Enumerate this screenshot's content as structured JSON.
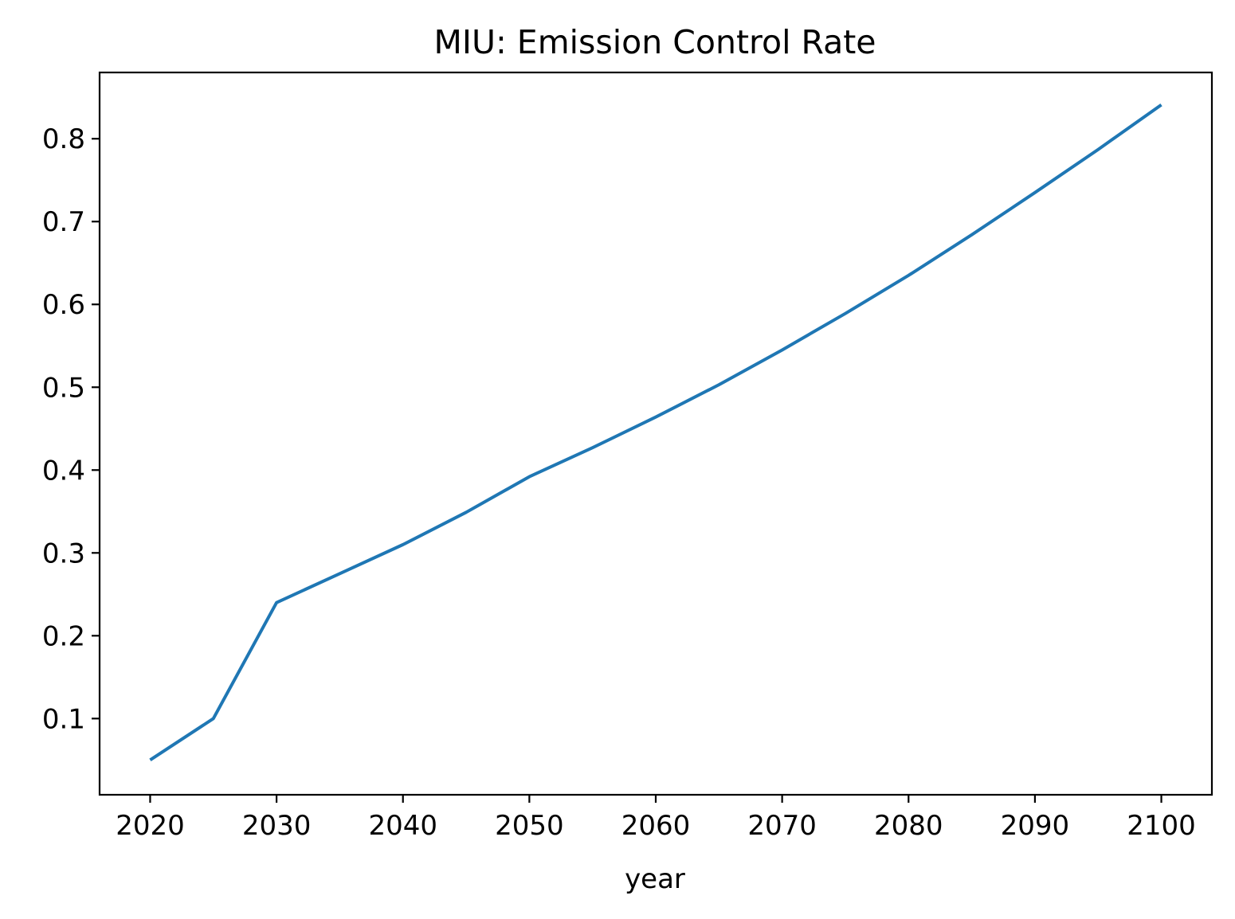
{
  "chart_data": {
    "type": "line",
    "title": "MIU: Emission Control Rate",
    "xlabel": "year",
    "ylabel": "",
    "xlim": [
      2016,
      2104
    ],
    "ylim": [
      0.008,
      0.88
    ],
    "xticks": [
      2020,
      2030,
      2040,
      2050,
      2060,
      2070,
      2080,
      2090,
      2100
    ],
    "xtick_labels": [
      "2020",
      "2030",
      "2040",
      "2050",
      "2060",
      "2070",
      "2080",
      "2090",
      "2100"
    ],
    "yticks": [
      0.1,
      0.2,
      0.3,
      0.4,
      0.5,
      0.6,
      0.7,
      0.8
    ],
    "ytick_labels": [
      "0.1",
      "0.2",
      "0.3",
      "0.4",
      "0.5",
      "0.6",
      "0.7",
      "0.8"
    ],
    "grid": false,
    "legend": false,
    "series": [
      {
        "color": "#1f77b4",
        "x": [
          2020,
          2025,
          2030,
          2035,
          2040,
          2045,
          2050,
          2055,
          2060,
          2065,
          2070,
          2075,
          2080,
          2085,
          2090,
          2095,
          2100
        ],
        "y": [
          0.05,
          0.1,
          0.24,
          0.275,
          0.31,
          0.349,
          0.392,
          0.427,
          0.464,
          0.503,
          0.545,
          0.589,
          0.635,
          0.684,
          0.735,
          0.787,
          0.841
        ]
      }
    ]
  }
}
